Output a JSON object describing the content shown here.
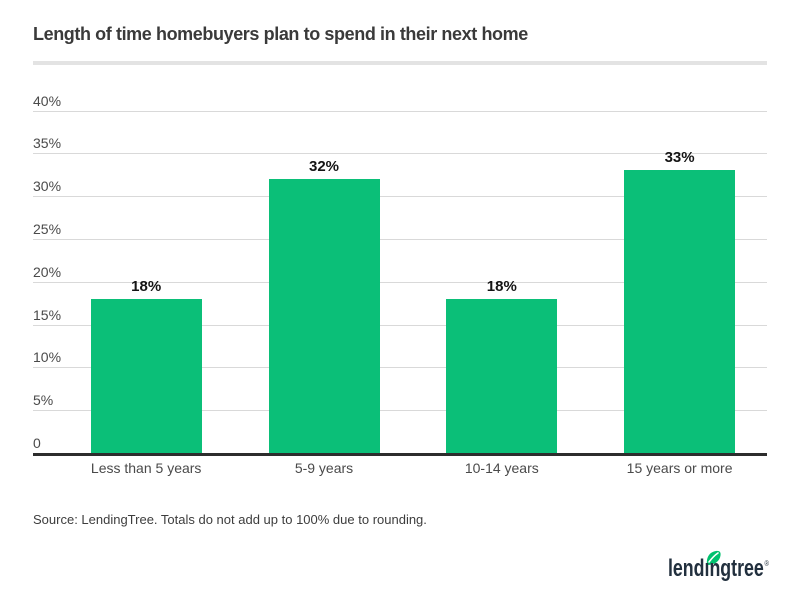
{
  "chart_data": {
    "type": "bar",
    "title": "Length of time homebuyers plan to spend in their next home",
    "categories": [
      "Less than 5 years",
      "5-9 years",
      "10-14 years",
      "15 years or more"
    ],
    "values": [
      18,
      32,
      18,
      33
    ],
    "value_labels": [
      "18%",
      "32%",
      "18%",
      "33%"
    ],
    "xlabel": "",
    "ylabel": "",
    "ylim": [
      0,
      40
    ],
    "yticks": [
      40,
      35,
      30,
      25,
      20,
      15,
      10,
      5,
      0
    ],
    "ytick_labels": [
      "40%",
      "35%",
      "30%",
      "25%",
      "20%",
      "15%",
      "10%",
      "5%",
      "0"
    ],
    "grid": true,
    "legend_position": "none",
    "bar_color": "#0bbf78",
    "gridline_color": "#d9d9d9",
    "axis_color": "#2d2d2d"
  },
  "source_note": "Source: LendingTree. Totals do not add up to 100% due to rounding.",
  "logo": {
    "part1": "lend",
    "i_char": "ı",
    "part2": "ngtree",
    "registered": "®",
    "text_color": "#22303e",
    "leaf_color": "#00c16e"
  }
}
